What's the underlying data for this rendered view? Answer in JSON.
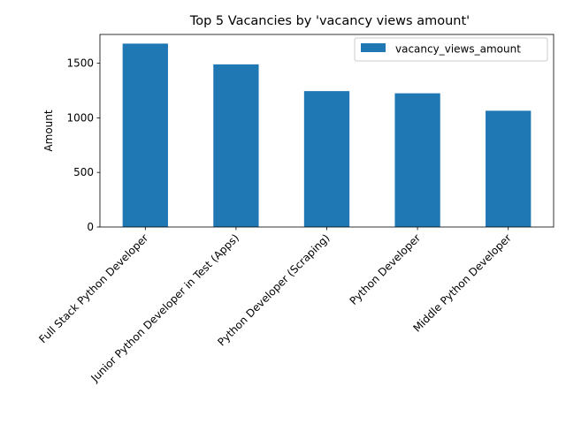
{
  "chart_data": {
    "type": "bar",
    "title": "Top 5 Vacancies by 'vacancy views amount'",
    "xlabel": "",
    "ylabel": "Amount",
    "categories": [
      "Full Stack Python Developer",
      "Junior Python Developer in Test (Apps)",
      "Python Developer (Scraping)",
      "Python Developer",
      "Middle Python Developer"
    ],
    "series": [
      {
        "name": "vacancy_views_amount",
        "values": [
          1680,
          1490,
          1245,
          1225,
          1065
        ]
      }
    ],
    "ylim": [
      0,
      1764
    ],
    "yticks": [
      0,
      500,
      1000,
      1500
    ],
    "grid": false,
    "legend_position": "top-right",
    "colors": {
      "bar": "#1f77b4",
      "axis": "#000000",
      "background": "#ffffff",
      "legend_border": "#cccccc"
    }
  }
}
